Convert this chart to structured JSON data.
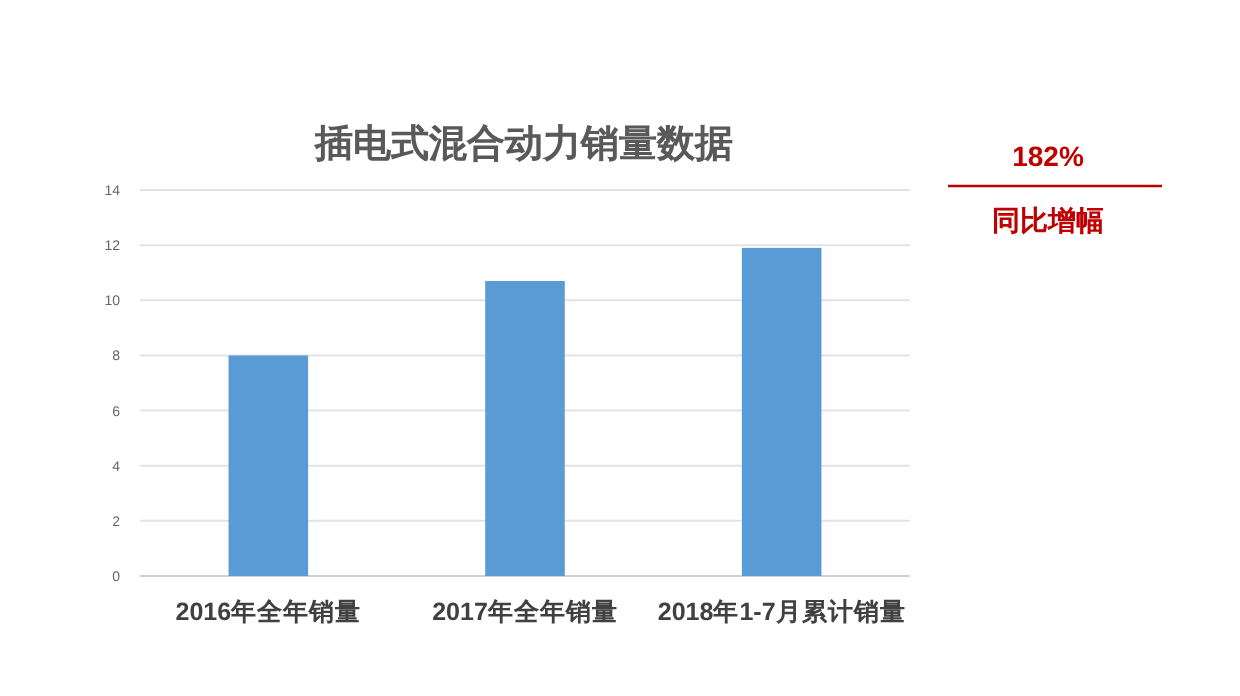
{
  "chart_data": {
    "type": "bar",
    "title": "插电式混合动力销量数据",
    "categories": [
      "2016年全年销量",
      "2017年全年销量",
      "2018年1-7月累计销量"
    ],
    "values": [
      8.0,
      10.7,
      11.9
    ],
    "color": "#5b9bd5",
    "ylim": [
      0,
      14
    ],
    "yticks": [
      0,
      2,
      4,
      6,
      8,
      10,
      12,
      14
    ],
    "grid": "y",
    "annotations": [
      "182%",
      "同比增幅"
    ]
  }
}
